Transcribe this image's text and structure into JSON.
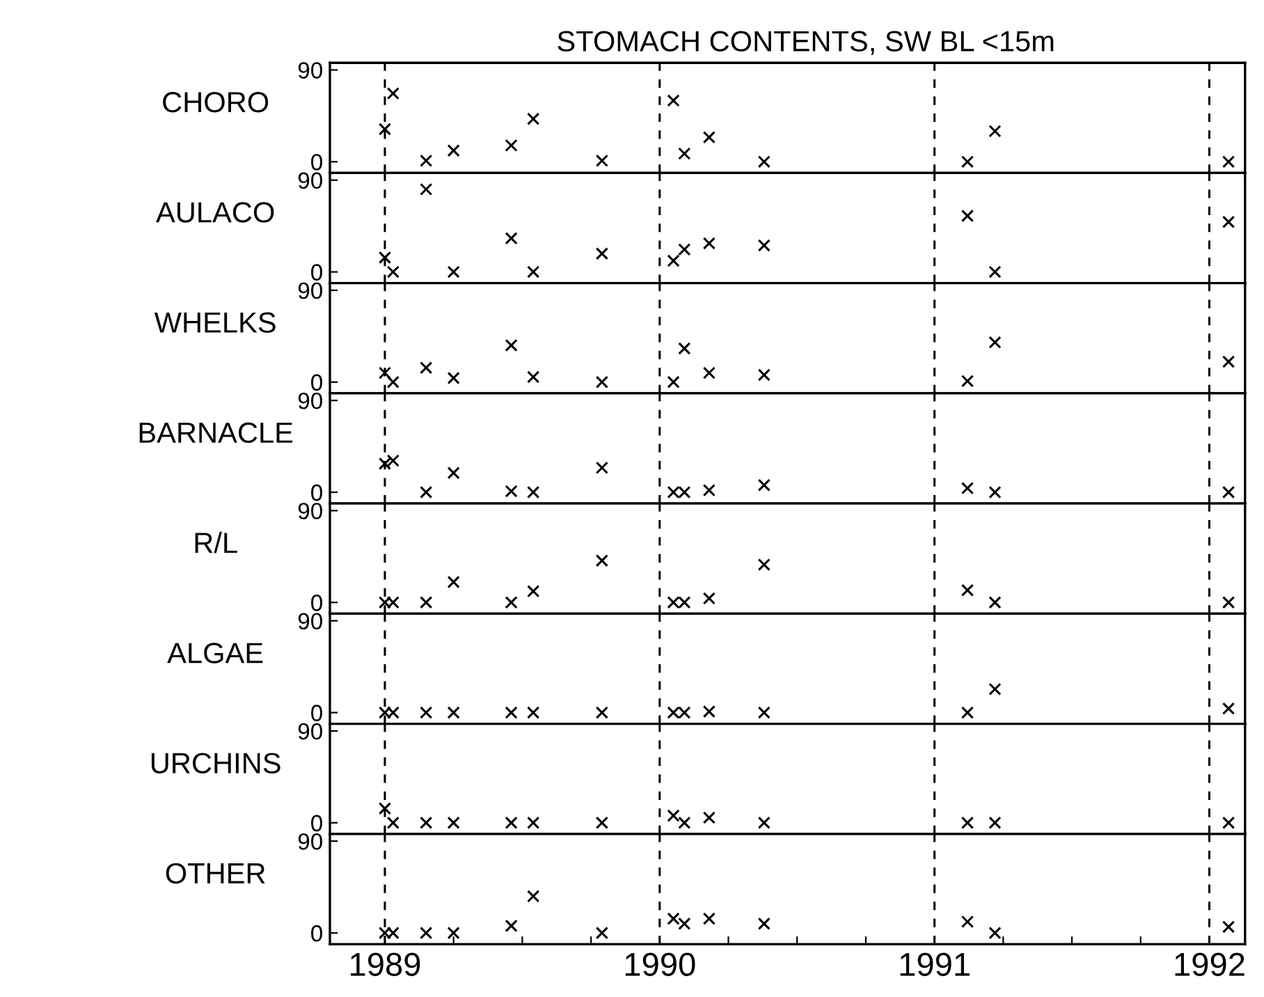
{
  "chart_data": [
    {
      "type": "scatter",
      "title": "STOMACH CONTENTS, SW BL <15m",
      "ylabel": "CHORO",
      "marker": "cross",
      "grid": false,
      "tick_labels": "y",
      "xlim": [
        1988.8,
        1992.13
      ],
      "xticks": [
        1989,
        1990,
        1991,
        1992
      ],
      "ylim": [
        -11,
        97
      ],
      "yticks": [
        0,
        90
      ],
      "x": [
        1989.0,
        1989.03,
        1989.15,
        1989.25,
        1989.46,
        1989.54,
        1989.79,
        1990.05,
        1990.09,
        1990.18,
        1990.38,
        1991.12,
        1991.22,
        1992.07
      ],
      "series": [
        {
          "color": "#000000",
          "values": [
            32,
            67,
            1,
            11,
            16,
            42,
            1,
            60,
            8,
            24,
            0,
            0,
            30,
            0
          ]
        }
      ],
      "ref_lines": [
        {
          "axis": "x",
          "value": 1989,
          "line_style": "dashed"
        },
        {
          "axis": "x",
          "value": 1990,
          "line_style": "dashed"
        },
        {
          "axis": "x",
          "value": 1991,
          "line_style": "dashed"
        },
        {
          "axis": "x",
          "value": 1992,
          "line_style": "dashed"
        }
      ]
    },
    {
      "type": "scatter",
      "ylabel": "AULACO",
      "marker": "cross",
      "grid": false,
      "tick_labels": "y",
      "xlim": [
        1988.8,
        1992.13
      ],
      "xticks": [
        1989,
        1990,
        1991,
        1992
      ],
      "ylim": [
        -11,
        97
      ],
      "yticks": [
        0,
        90
      ],
      "x": [
        1989.0,
        1989.03,
        1989.15,
        1989.25,
        1989.46,
        1989.54,
        1989.79,
        1990.05,
        1990.09,
        1990.18,
        1990.38,
        1991.12,
        1991.22,
        1992.07
      ],
      "series": [
        {
          "color": "#000000",
          "values": [
            14,
            0,
            81,
            0,
            33,
            0,
            18,
            11,
            22,
            28,
            26,
            55,
            0,
            49
          ]
        }
      ],
      "ref_lines": [
        {
          "axis": "x",
          "value": 1989,
          "line_style": "dashed"
        },
        {
          "axis": "x",
          "value": 1990,
          "line_style": "dashed"
        },
        {
          "axis": "x",
          "value": 1991,
          "line_style": "dashed"
        },
        {
          "axis": "x",
          "value": 1992,
          "line_style": "dashed"
        }
      ]
    },
    {
      "type": "scatter",
      "ylabel": "WHELKS",
      "marker": "cross",
      "grid": false,
      "tick_labels": "y",
      "xlim": [
        1988.8,
        1992.13
      ],
      "xticks": [
        1989,
        1990,
        1991,
        1992
      ],
      "ylim": [
        -11,
        97
      ],
      "yticks": [
        0,
        90
      ],
      "x": [
        1989.0,
        1989.03,
        1989.15,
        1989.25,
        1989.46,
        1989.54,
        1989.79,
        1990.05,
        1990.09,
        1990.18,
        1990.38,
        1991.12,
        1991.22,
        1992.07
      ],
      "series": [
        {
          "color": "#000000",
          "values": [
            9,
            0,
            14,
            4,
            36,
            5,
            0,
            0,
            33,
            9,
            7,
            1,
            39,
            20
          ]
        }
      ],
      "ref_lines": [
        {
          "axis": "x",
          "value": 1989,
          "line_style": "dashed"
        },
        {
          "axis": "x",
          "value": 1990,
          "line_style": "dashed"
        },
        {
          "axis": "x",
          "value": 1991,
          "line_style": "dashed"
        },
        {
          "axis": "x",
          "value": 1992,
          "line_style": "dashed"
        }
      ]
    },
    {
      "type": "scatter",
      "ylabel": "BARNACLE",
      "marker": "cross",
      "grid": false,
      "tick_labels": "y",
      "xlim": [
        1988.8,
        1992.13
      ],
      "xticks": [
        1989,
        1990,
        1991,
        1992
      ],
      "ylim": [
        -11,
        97
      ],
      "yticks": [
        0,
        90
      ],
      "x": [
        1989.0,
        1989.03,
        1989.15,
        1989.25,
        1989.46,
        1989.54,
        1989.79,
        1990.05,
        1990.09,
        1990.18,
        1990.38,
        1991.12,
        1991.22,
        1992.07
      ],
      "series": [
        {
          "color": "#000000",
          "values": [
            28,
            31,
            0,
            19,
            1,
            0,
            24,
            0,
            0,
            2,
            7,
            4,
            0,
            0
          ]
        }
      ],
      "ref_lines": [
        {
          "axis": "x",
          "value": 1989,
          "line_style": "dashed"
        },
        {
          "axis": "x",
          "value": 1990,
          "line_style": "dashed"
        },
        {
          "axis": "x",
          "value": 1991,
          "line_style": "dashed"
        },
        {
          "axis": "x",
          "value": 1992,
          "line_style": "dashed"
        }
      ]
    },
    {
      "type": "scatter",
      "ylabel": "R/L",
      "marker": "cross",
      "grid": false,
      "tick_labels": "y",
      "xlim": [
        1988.8,
        1992.13
      ],
      "xticks": [
        1989,
        1990,
        1991,
        1992
      ],
      "ylim": [
        -11,
        97
      ],
      "yticks": [
        0,
        90
      ],
      "x": [
        1989.0,
        1989.03,
        1989.15,
        1989.25,
        1989.46,
        1989.54,
        1989.79,
        1990.05,
        1990.09,
        1990.18,
        1990.38,
        1991.12,
        1991.22,
        1992.07
      ],
      "series": [
        {
          "color": "#000000",
          "values": [
            0,
            0,
            0,
            20,
            0,
            11,
            41,
            0,
            0,
            4,
            37,
            12,
            0,
            0
          ]
        }
      ],
      "ref_lines": [
        {
          "axis": "x",
          "value": 1989,
          "line_style": "dashed"
        },
        {
          "axis": "x",
          "value": 1990,
          "line_style": "dashed"
        },
        {
          "axis": "x",
          "value": 1991,
          "line_style": "dashed"
        },
        {
          "axis": "x",
          "value": 1992,
          "line_style": "dashed"
        }
      ]
    },
    {
      "type": "scatter",
      "ylabel": "ALGAE",
      "marker": "cross",
      "grid": false,
      "tick_labels": "y",
      "xlim": [
        1988.8,
        1992.13
      ],
      "xticks": [
        1989,
        1990,
        1991,
        1992
      ],
      "ylim": [
        -11,
        97
      ],
      "yticks": [
        0,
        90
      ],
      "x": [
        1989.0,
        1989.03,
        1989.15,
        1989.25,
        1989.46,
        1989.54,
        1989.79,
        1990.05,
        1990.09,
        1990.18,
        1990.38,
        1991.12,
        1991.22,
        1992.07
      ],
      "series": [
        {
          "color": "#000000",
          "values": [
            0,
            0,
            0,
            0,
            0,
            0,
            0,
            0,
            0,
            1,
            0,
            0,
            23,
            4
          ]
        }
      ],
      "ref_lines": [
        {
          "axis": "x",
          "value": 1989,
          "line_style": "dashed"
        },
        {
          "axis": "x",
          "value": 1990,
          "line_style": "dashed"
        },
        {
          "axis": "x",
          "value": 1991,
          "line_style": "dashed"
        },
        {
          "axis": "x",
          "value": 1992,
          "line_style": "dashed"
        }
      ]
    },
    {
      "type": "scatter",
      "ylabel": "URCHINS",
      "marker": "cross",
      "grid": false,
      "tick_labels": "y",
      "xlim": [
        1988.8,
        1992.13
      ],
      "xticks": [
        1989,
        1990,
        1991,
        1992
      ],
      "ylim": [
        -11,
        97
      ],
      "yticks": [
        0,
        90
      ],
      "x": [
        1989.0,
        1989.03,
        1989.15,
        1989.25,
        1989.46,
        1989.54,
        1989.79,
        1990.05,
        1990.09,
        1990.18,
        1990.38,
        1991.12,
        1991.22,
        1992.07
      ],
      "series": [
        {
          "color": "#000000",
          "values": [
            14,
            0,
            0,
            0,
            0,
            0,
            0,
            7,
            0,
            5,
            0,
            0,
            0,
            0
          ]
        }
      ],
      "ref_lines": [
        {
          "axis": "x",
          "value": 1989,
          "line_style": "dashed"
        },
        {
          "axis": "x",
          "value": 1990,
          "line_style": "dashed"
        },
        {
          "axis": "x",
          "value": 1991,
          "line_style": "dashed"
        },
        {
          "axis": "x",
          "value": 1992,
          "line_style": "dashed"
        }
      ]
    },
    {
      "type": "scatter",
      "ylabel": "OTHER",
      "marker": "cross",
      "grid": false,
      "xlim": [
        1988.8,
        1992.13
      ],
      "xticks": [
        1989,
        {
          "value": 1989.25,
          "label": null
        },
        {
          "value": 1989.5,
          "label": null
        },
        {
          "value": 1989.75,
          "label": null
        },
        1990,
        {
          "value": 1990.25,
          "label": null
        },
        {
          "value": 1990.5,
          "label": null
        },
        {
          "value": 1990.75,
          "label": null
        },
        1991,
        {
          "value": 1991.25,
          "label": null
        },
        {
          "value": 1991.5,
          "label": null
        },
        {
          "value": 1991.75,
          "label": null
        },
        1992
      ],
      "ylim": [
        -11,
        97
      ],
      "yticks": [
        0,
        90
      ],
      "x": [
        1989.0,
        1989.03,
        1989.15,
        1989.25,
        1989.46,
        1989.54,
        1989.79,
        1990.05,
        1990.09,
        1990.18,
        1990.38,
        1991.12,
        1991.22,
        1992.07
      ],
      "series": [
        {
          "color": "#000000",
          "values": [
            0,
            0,
            0,
            0,
            7,
            36,
            0,
            14,
            9,
            14,
            9,
            11,
            0,
            6
          ]
        }
      ],
      "ref_lines": [
        {
          "axis": "x",
          "value": 1989,
          "line_style": "dashed"
        },
        {
          "axis": "x",
          "value": 1990,
          "line_style": "dashed"
        },
        {
          "axis": "x",
          "value": 1991,
          "line_style": "dashed"
        },
        {
          "axis": "x",
          "value": 1992,
          "line_style": "dashed"
        }
      ]
    }
  ]
}
